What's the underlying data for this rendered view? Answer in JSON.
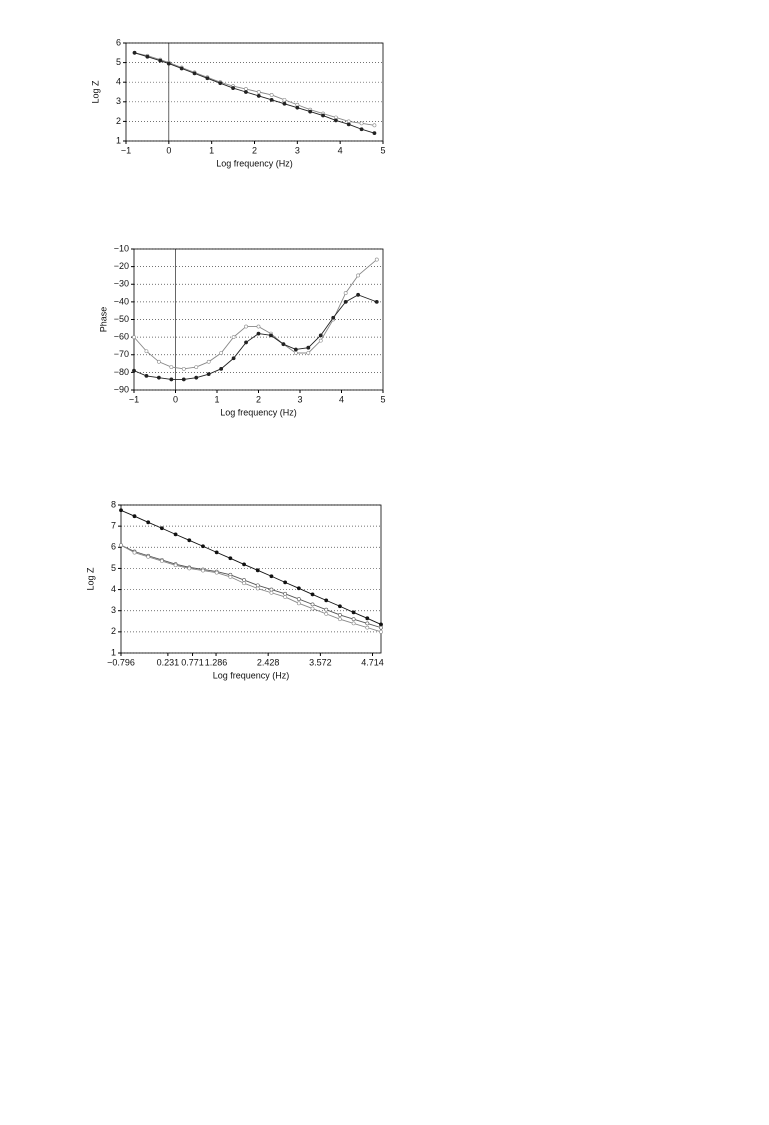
{
  "chart_data": [
    {
      "type": "line",
      "ylabel": "Log Z",
      "xlabel": "Log frequency (Hz)",
      "x": [
        -0.8,
        -0.5,
        -0.2,
        0,
        0.3,
        0.6,
        0.9,
        1.2,
        1.5,
        1.8,
        2.1,
        2.4,
        2.7,
        3.0,
        3.3,
        3.6,
        3.9,
        4.2,
        4.5,
        4.8
      ],
      "series": [
        {
          "color": "#888888",
          "marker": "open",
          "values": [
            5.5,
            5.35,
            5.15,
            5.0,
            4.75,
            4.5,
            4.25,
            4.0,
            3.8,
            3.65,
            3.5,
            3.35,
            3.1,
            2.85,
            2.6,
            2.4,
            2.2,
            2.0,
            1.9,
            1.8
          ]
        },
        {
          "color": "#222222",
          "marker": "filled",
          "values": [
            5.5,
            5.3,
            5.1,
            4.95,
            4.7,
            4.45,
            4.2,
            3.95,
            3.7,
            3.5,
            3.3,
            3.1,
            2.9,
            2.7,
            2.5,
            2.3,
            2.05,
            1.85,
            1.6,
            1.4
          ]
        }
      ],
      "xlim": [
        -1,
        5
      ],
      "xticks": [
        {
          "value": -1,
          "label": "−1"
        },
        0,
        1,
        2,
        3,
        4,
        5
      ],
      "ylim": [
        1,
        6
      ],
      "yticks": [
        1,
        2,
        3,
        4,
        5,
        6
      ],
      "grid": true,
      "x_zero_line": true
    },
    {
      "type": "line",
      "ylabel": "Phase",
      "xlabel": "Log frequency (Hz)",
      "x": [
        -1,
        -0.7,
        -0.4,
        -0.1,
        0.2,
        0.5,
        0.8,
        1.1,
        1.4,
        1.7,
        2.0,
        2.3,
        2.6,
        2.9,
        3.2,
        3.5,
        3.8,
        4.1,
        4.4,
        4.85
      ],
      "series": [
        {
          "color": "#888888",
          "marker": "open",
          "values": [
            -60,
            -68,
            -74,
            -77,
            -78,
            -77,
            -74,
            -69,
            -60,
            -54,
            -54,
            -58,
            -64,
            -69,
            -69,
            -62,
            -50,
            -35,
            -25,
            -16
          ]
        },
        {
          "color": "#222222",
          "marker": "filled",
          "values": [
            -79,
            -82,
            -83,
            -84,
            -84,
            -83,
            -81,
            -78,
            -72,
            -63,
            -58,
            -59,
            -64,
            -67,
            -66,
            -59,
            -49,
            -40,
            -36,
            -40
          ]
        }
      ],
      "xlim": [
        -1,
        5
      ],
      "xticks": [
        {
          "value": -1,
          "label": "−1"
        },
        0,
        1,
        2,
        3,
        4,
        5
      ],
      "ylim": [
        -90,
        -10
      ],
      "yticks": [
        {
          "value": -90,
          "label": "−90"
        },
        {
          "value": -80,
          "label": "−80"
        },
        {
          "value": -70,
          "label": "−70"
        },
        {
          "value": -60,
          "label": "−60"
        },
        {
          "value": -50,
          "label": "−50"
        },
        {
          "value": -40,
          "label": "−40"
        },
        {
          "value": -30,
          "label": "−30"
        },
        {
          "value": -20,
          "label": "−20"
        },
        {
          "value": -10,
          "label": "−10"
        }
      ],
      "grid": true,
      "x_zero_line": true
    },
    {
      "type": "line",
      "ylabel": "Log Z",
      "xlabel": "Log frequency (Hz)",
      "x": [
        -0.796,
        -0.5,
        -0.2,
        0.1,
        0.4,
        0.7,
        1.0,
        1.3,
        1.6,
        1.9,
        2.2,
        2.5,
        2.8,
        3.1,
        3.4,
        3.7,
        4.0,
        4.3,
        4.6,
        4.9
      ],
      "series": [
        {
          "color": "#111111",
          "marker": "filled",
          "values": [
            7.75,
            7.47,
            7.18,
            6.9,
            6.61,
            6.33,
            6.05,
            5.76,
            5.48,
            5.19,
            4.91,
            4.63,
            4.34,
            4.06,
            3.77,
            3.49,
            3.21,
            2.92,
            2.64,
            2.35
          ]
        },
        {
          "color": "#555555",
          "marker": "open",
          "values": [
            6.1,
            5.8,
            5.6,
            5.4,
            5.2,
            5.05,
            4.95,
            4.85,
            4.7,
            4.45,
            4.2,
            4.0,
            3.8,
            3.55,
            3.3,
            3.05,
            2.8,
            2.6,
            2.4,
            2.2
          ]
        },
        {
          "color": "#888888",
          "marker": "open",
          "values": [
            6.1,
            5.75,
            5.55,
            5.35,
            5.15,
            5.0,
            4.9,
            4.8,
            4.6,
            4.3,
            4.05,
            3.85,
            3.65,
            3.35,
            3.1,
            2.85,
            2.6,
            2.4,
            2.2,
            2.0
          ]
        }
      ],
      "xlim": [
        -0.796,
        4.9
      ],
      "xticks": [
        {
          "value": -0.796,
          "label": "−0.796"
        },
        0.231,
        0.771,
        1.286,
        2.428,
        3.572,
        4.714
      ],
      "ylim": [
        1,
        8
      ],
      "yticks": [
        1,
        2,
        3,
        4,
        5,
        6,
        7,
        8
      ],
      "grid": true,
      "x_zero_line": false
    }
  ]
}
